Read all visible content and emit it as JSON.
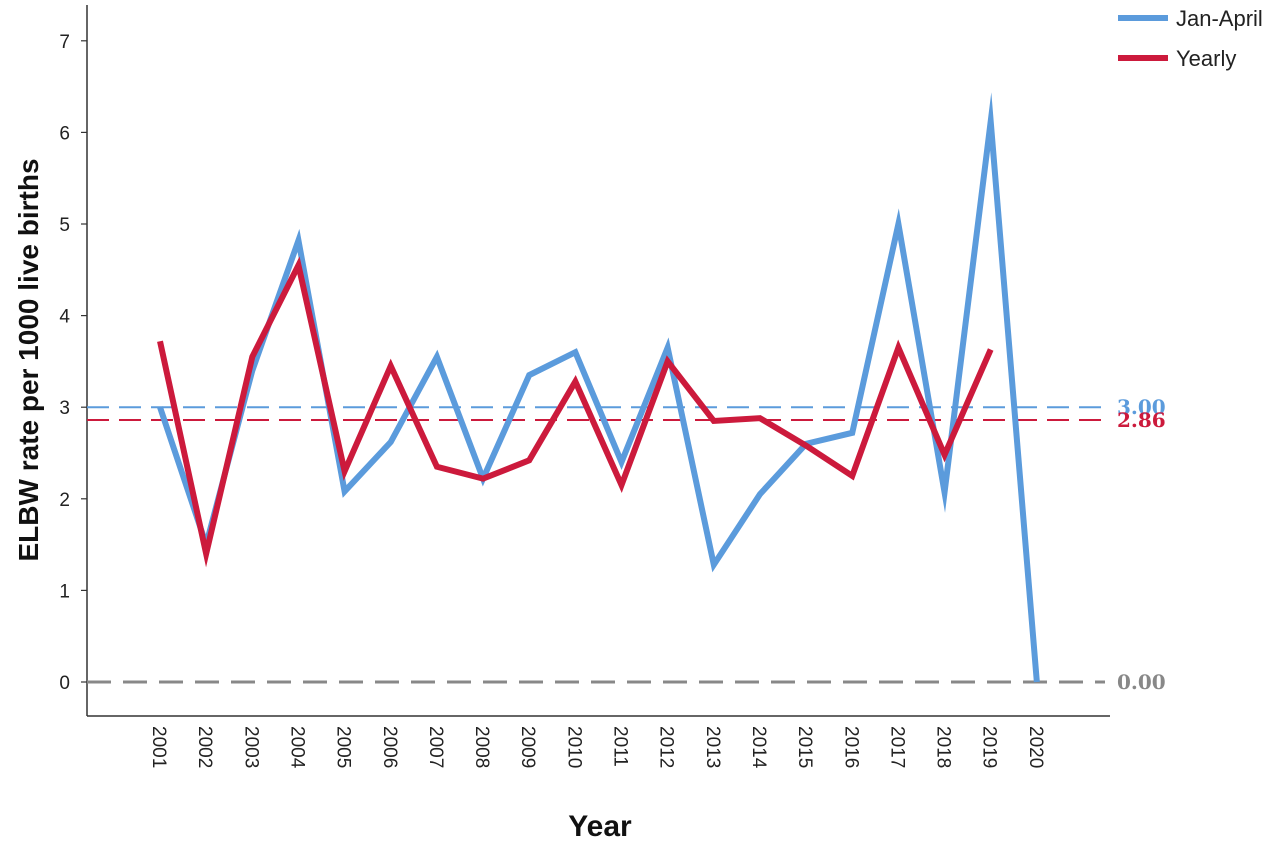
{
  "chart_data": {
    "type": "line",
    "title": "",
    "xlabel": "Year",
    "ylabel": "ELBW rate per 1000 live births",
    "ylim": [
      0,
      7
    ],
    "yticks": [
      "0",
      "1",
      "2",
      "3",
      "4",
      "5",
      "6",
      "7"
    ],
    "categories": [
      "2001",
      "2002",
      "2003",
      "2004",
      "2005",
      "2006",
      "2007",
      "2008",
      "2009",
      "2010",
      "2011",
      "2012",
      "2013",
      "2014",
      "2015",
      "2016",
      "2017",
      "2018",
      "2019",
      "2020"
    ],
    "series": [
      {
        "name": "Jan-April",
        "color": "#5b9bdc",
        "values": [
          3.0,
          1.5,
          3.4,
          4.82,
          2.08,
          2.62,
          3.55,
          2.22,
          3.35,
          3.6,
          2.4,
          3.65,
          1.28,
          2.05,
          2.6,
          2.72,
          5.0,
          2.07,
          6.12,
          0.0
        ]
      },
      {
        "name": "Yearly",
        "color": "#cc1a3c",
        "values": [
          3.72,
          1.4,
          3.55,
          4.55,
          2.3,
          3.45,
          2.35,
          2.22,
          2.42,
          3.28,
          2.15,
          3.5,
          2.85,
          2.88,
          2.58,
          2.25,
          3.65,
          2.48,
          3.63,
          null
        ]
      }
    ],
    "reference_lines": [
      {
        "value": 3.0,
        "label": "3.00",
        "color": "#5b9bdc"
      },
      {
        "value": 2.86,
        "label": "2.86",
        "color": "#cc1a3c"
      },
      {
        "value": 0.0,
        "label": "0.00",
        "color": "#888888"
      }
    ],
    "legend_position": "top-right",
    "grid": false
  }
}
